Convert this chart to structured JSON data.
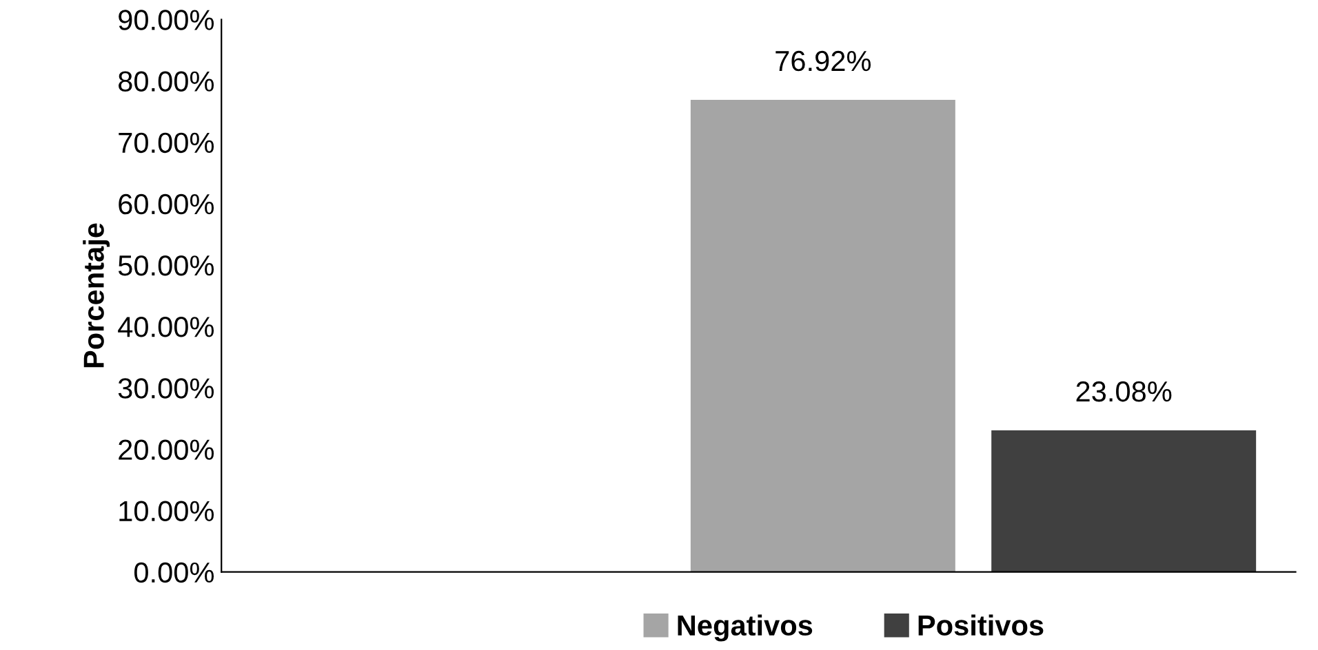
{
  "chart_data": {
    "type": "bar",
    "ylabel": "Porcentaje",
    "categories": [
      null
    ],
    "series": [
      {
        "name": "Negativos",
        "color": "#a5a5a5",
        "values": [
          76.92
        ],
        "value_labels": [
          "76.92%"
        ]
      },
      {
        "name": "Positivos",
        "color": "#404040",
        "values": [
          23.08
        ],
        "value_labels": [
          "23.08%"
        ]
      }
    ],
    "ylim": [
      0,
      90
    ],
    "yticks": [
      {
        "value": 0,
        "label": "0.00%"
      },
      {
        "value": 10,
        "label": "10.00%"
      },
      {
        "value": 20,
        "label": "20.00%"
      },
      {
        "value": 30,
        "label": "30.00%"
      },
      {
        "value": 40,
        "label": "40.00%"
      },
      {
        "value": 50,
        "label": "50.00%"
      },
      {
        "value": 60,
        "label": "60.00%"
      },
      {
        "value": 70,
        "label": "70.00%"
      },
      {
        "value": 80,
        "label": "80.00%"
      },
      {
        "value": 90,
        "label": "90.00%"
      }
    ],
    "grid": false,
    "legend": "bottom"
  }
}
